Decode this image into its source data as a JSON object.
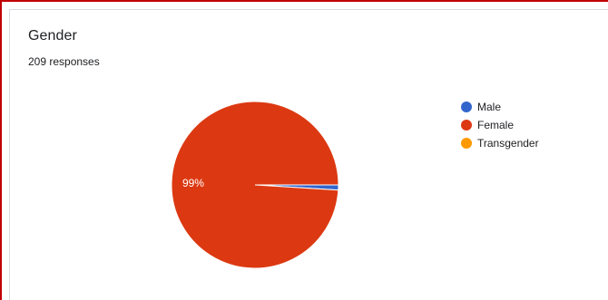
{
  "card": {
    "title": "Gender",
    "subtitle": "209 responses"
  },
  "chart_data": {
    "type": "pie",
    "title": "Gender",
    "slices": [
      {
        "label": "Male",
        "value": 1.0,
        "color": "#3366cc",
        "show_label": false
      },
      {
        "label": "Female",
        "value": 99.0,
        "color": "#dc3912",
        "show_label": true,
        "display_label": "99%"
      },
      {
        "label": "Transgender",
        "value": 0,
        "color": "#ff9900",
        "show_label": false
      }
    ],
    "legend_position": "right"
  }
}
